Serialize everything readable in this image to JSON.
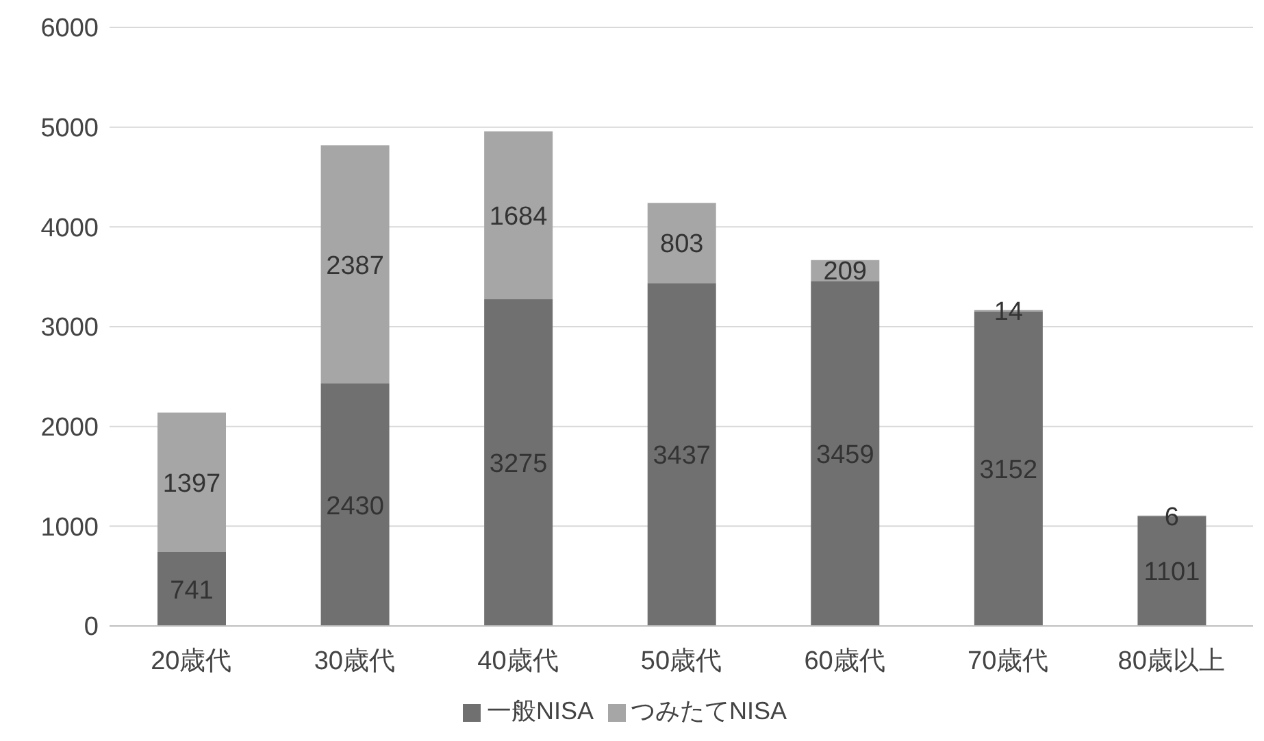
{
  "chart_data": {
    "type": "bar",
    "stacked": true,
    "categories": [
      "20歳代",
      "30歳代",
      "40歳代",
      "50歳代",
      "60歳代",
      "70歳代",
      "80歳以上"
    ],
    "series": [
      {
        "name": "一般NISA",
        "color": "#707070",
        "values": [
          741,
          2430,
          3275,
          3437,
          3459,
          3152,
          1101
        ]
      },
      {
        "name": "つみたてNISA",
        "color": "#a6a6a6",
        "values": [
          1397,
          2387,
          1684,
          803,
          209,
          14,
          6
        ]
      }
    ],
    "ylim": [
      0,
      6000
    ],
    "yticks": [
      0,
      1000,
      2000,
      3000,
      4000,
      5000,
      6000
    ],
    "grid": "y",
    "legend": "bottom",
    "data_labels": true
  }
}
